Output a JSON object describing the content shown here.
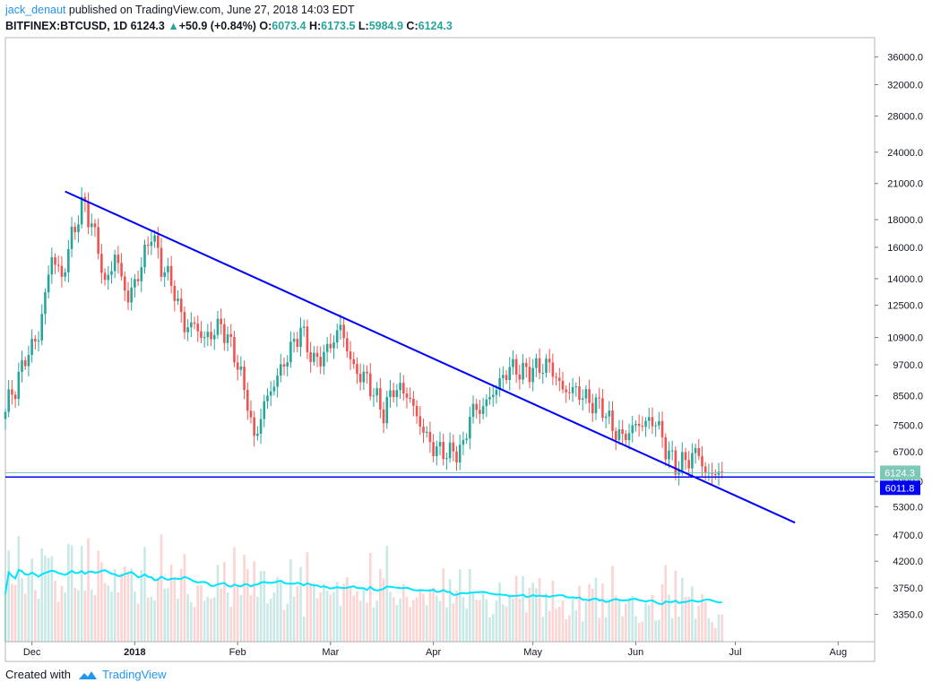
{
  "header": {
    "author": "jack_denaut",
    "published_text": " published on TradingView.com, June 27, 2018 14:03 EDT",
    "symbol": "BITFINEX:BTCUSD, 1D",
    "last": "6124.3",
    "change_arrow": "▲",
    "change": "+50.9 (+0.84%)",
    "o_label": "O:",
    "o": "6073.4",
    "h_label": "H:",
    "h": "6173.5",
    "l_label": "L:",
    "l": "5984.9",
    "c_label": "C:",
    "c": "6124.3"
  },
  "footer": {
    "created_with": "Created with",
    "brand": "TradingView"
  },
  "colors": {
    "up": "#26a69a",
    "down": "#ef5350",
    "trendline": "#0000ff",
    "volume_ma": "#00e5ff",
    "price_badge": "#7ec8b8",
    "hline_badge": "#0000ff"
  },
  "chart_data": {
    "type": "candlestick",
    "symbol": "BITFINEX:BTCUSD",
    "interval": "1D",
    "y_scale": "log",
    "y_ticks": [
      36000,
      32000,
      28000,
      24000,
      21000,
      18000,
      16000,
      14000,
      12500,
      10900,
      9700,
      8500,
      7500,
      6700,
      5900,
      5300,
      4700,
      4200,
      3750,
      3350
    ],
    "y_tick_labels": [
      "36000.0",
      "32000.0",
      "28000.0",
      "24000.0",
      "21000.0",
      "18000.0",
      "16000.0",
      "14000.0",
      "12500.0",
      "10900.0",
      "9700.0",
      "8500.0",
      "7500.0",
      "6700.0",
      "5900.0",
      "5300.0",
      "4700.0",
      "4200.0",
      "3750.0",
      "3350.0"
    ],
    "x_ticks": [
      {
        "label": "Dec",
        "date": "2017-12-01"
      },
      {
        "label": "2018",
        "date": "2018-01-01",
        "bold": true
      },
      {
        "label": "Feb",
        "date": "2018-02-01"
      },
      {
        "label": "Mar",
        "date": "2018-03-01"
      },
      {
        "label": "Apr",
        "date": "2018-04-01"
      },
      {
        "label": "May",
        "date": "2018-05-01"
      },
      {
        "label": "Jun",
        "date": "2018-06-01"
      },
      {
        "label": "Jul",
        "date": "2018-07-01"
      },
      {
        "label": "Aug",
        "date": "2018-08-01"
      }
    ],
    "x_range": [
      "2017-11-23",
      "2018-08-12"
    ],
    "y_range": [
      3050,
      38500
    ],
    "price_path": [
      [
        "2017-11-23",
        8100
      ],
      [
        "2017-11-26",
        8800
      ],
      [
        "2017-11-29",
        10000
      ],
      [
        "2017-12-03",
        11000
      ],
      [
        "2017-12-07",
        15500
      ],
      [
        "2017-12-10",
        14000
      ],
      [
        "2017-12-13",
        16800
      ],
      [
        "2017-12-16",
        19000
      ],
      [
        "2017-12-17",
        19200
      ],
      [
        "2017-12-21",
        16000
      ],
      [
        "2017-12-23",
        13500
      ],
      [
        "2017-12-26",
        15500
      ],
      [
        "2017-12-30",
        12800
      ],
      [
        "2018-01-03",
        14800
      ],
      [
        "2018-01-06",
        17100
      ],
      [
        "2018-01-09",
        14800
      ],
      [
        "2018-01-12",
        13800
      ],
      [
        "2018-01-16",
        11400
      ],
      [
        "2018-01-19",
        11500
      ],
      [
        "2018-01-22",
        10800
      ],
      [
        "2018-01-27",
        11500
      ],
      [
        "2018-01-31",
        10200
      ],
      [
        "2018-02-04",
        8300
      ],
      [
        "2018-02-06",
        7000
      ],
      [
        "2018-02-09",
        8200
      ],
      [
        "2018-02-14",
        9500
      ],
      [
        "2018-02-20",
        11300
      ],
      [
        "2018-02-24",
        9800
      ],
      [
        "2018-02-28",
        10300
      ],
      [
        "2018-03-04",
        11400
      ],
      [
        "2018-03-08",
        9500
      ],
      [
        "2018-03-12",
        9100
      ],
      [
        "2018-03-17",
        7900
      ],
      [
        "2018-03-20",
        8800
      ],
      [
        "2018-03-24",
        8600
      ],
      [
        "2018-03-29",
        7300
      ],
      [
        "2018-04-01",
        6800
      ],
      [
        "2018-04-06",
        6650
      ],
      [
        "2018-04-10",
        6800
      ],
      [
        "2018-04-12",
        7900
      ],
      [
        "2018-04-16",
        8100
      ],
      [
        "2018-04-20",
        8800
      ],
      [
        "2018-04-24",
        9600
      ],
      [
        "2018-04-28",
        9400
      ],
      [
        "2018-05-03",
        9600
      ],
      [
        "2018-05-06",
        9700
      ],
      [
        "2018-05-10",
        8700
      ],
      [
        "2018-05-14",
        8700
      ],
      [
        "2018-05-18",
        8300
      ],
      [
        "2018-05-22",
        8100
      ],
      [
        "2018-05-25",
        7400
      ],
      [
        "2018-05-28",
        7100
      ],
      [
        "2018-06-01",
        7500
      ],
      [
        "2018-06-07",
        7650
      ],
      [
        "2018-06-10",
        6800
      ],
      [
        "2018-06-13",
        6300
      ],
      [
        "2018-06-17",
        6500
      ],
      [
        "2018-06-20",
        6700
      ],
      [
        "2018-06-22",
        6050
      ],
      [
        "2018-06-25",
        6150
      ],
      [
        "2018-06-27",
        6124.3
      ]
    ],
    "last_price": 6124.3,
    "horizontal_line": {
      "price": 6011.8,
      "label": "6011.8"
    },
    "trendline": {
      "from": [
        "2017-12-11",
        20300
      ],
      "to": [
        "2018-07-19",
        4950
      ]
    },
    "volume": {
      "has_volume_ma": true
    }
  }
}
